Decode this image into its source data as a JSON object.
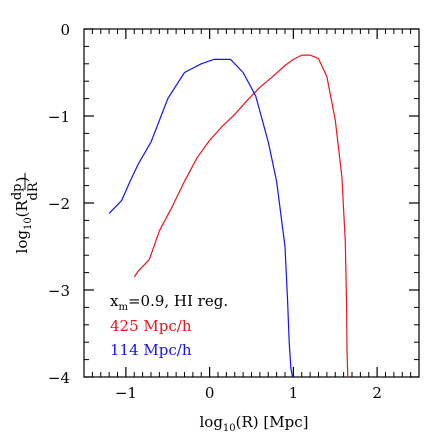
{
  "chart_data": {
    "type": "line",
    "title": "",
    "xlabel": "log10(R) [Mpc]",
    "ylabel": "log10(R dp/dR)",
    "xlim": [
      -1.5,
      2.5
    ],
    "ylim": [
      -4,
      0
    ],
    "x_major_ticks": [
      -1,
      0,
      1,
      2
    ],
    "x_tick_labels": [
      "−1",
      "0",
      "1",
      "2"
    ],
    "y_major_ticks": [
      0,
      -1,
      -2,
      -3,
      -4
    ],
    "y_tick_labels": [
      "0",
      "−1",
      "−2",
      "−3",
      "−4"
    ],
    "legend_placement": "bottom-left",
    "legend": {
      "header_main": "x",
      "header_sub": "m",
      "header_rest": "=0.9, HI reg."
    },
    "series": [
      {
        "name": "425 Mpc/h",
        "color": "#e8141e",
        "x": [
          -0.9,
          -0.85,
          -0.72,
          -0.6,
          -0.45,
          -0.3,
          -0.15,
          0.0,
          0.15,
          0.3,
          0.45,
          0.6,
          0.75,
          0.9,
          1.0,
          1.1,
          1.2,
          1.3,
          1.4,
          1.5,
          1.58,
          1.62,
          1.635,
          1.64,
          1.65
        ],
        "y": [
          -2.85,
          -2.78,
          -2.65,
          -2.32,
          -2.05,
          -1.75,
          -1.48,
          -1.28,
          -1.12,
          -0.98,
          -0.82,
          -0.67,
          -0.55,
          -0.42,
          -0.35,
          -0.3,
          -0.3,
          -0.34,
          -0.55,
          -1.05,
          -1.7,
          -2.45,
          -3.2,
          -3.7,
          -4.0
        ]
      },
      {
        "name": "114 Mpc/h",
        "color": "#1414f0",
        "x": [
          -1.2,
          -1.05,
          -0.95,
          -0.85,
          -0.7,
          -0.5,
          -0.3,
          -0.1,
          0.05,
          0.25,
          0.4,
          0.55,
          0.7,
          0.8,
          0.9,
          0.93,
          0.95,
          0.97,
          0.99
        ],
        "y": [
          -2.12,
          -1.97,
          -1.75,
          -1.55,
          -1.3,
          -0.8,
          -0.5,
          -0.4,
          -0.35,
          -0.35,
          -0.5,
          -0.77,
          -1.3,
          -1.75,
          -2.5,
          -3.1,
          -3.6,
          -3.9,
          -4.0
        ]
      }
    ]
  }
}
